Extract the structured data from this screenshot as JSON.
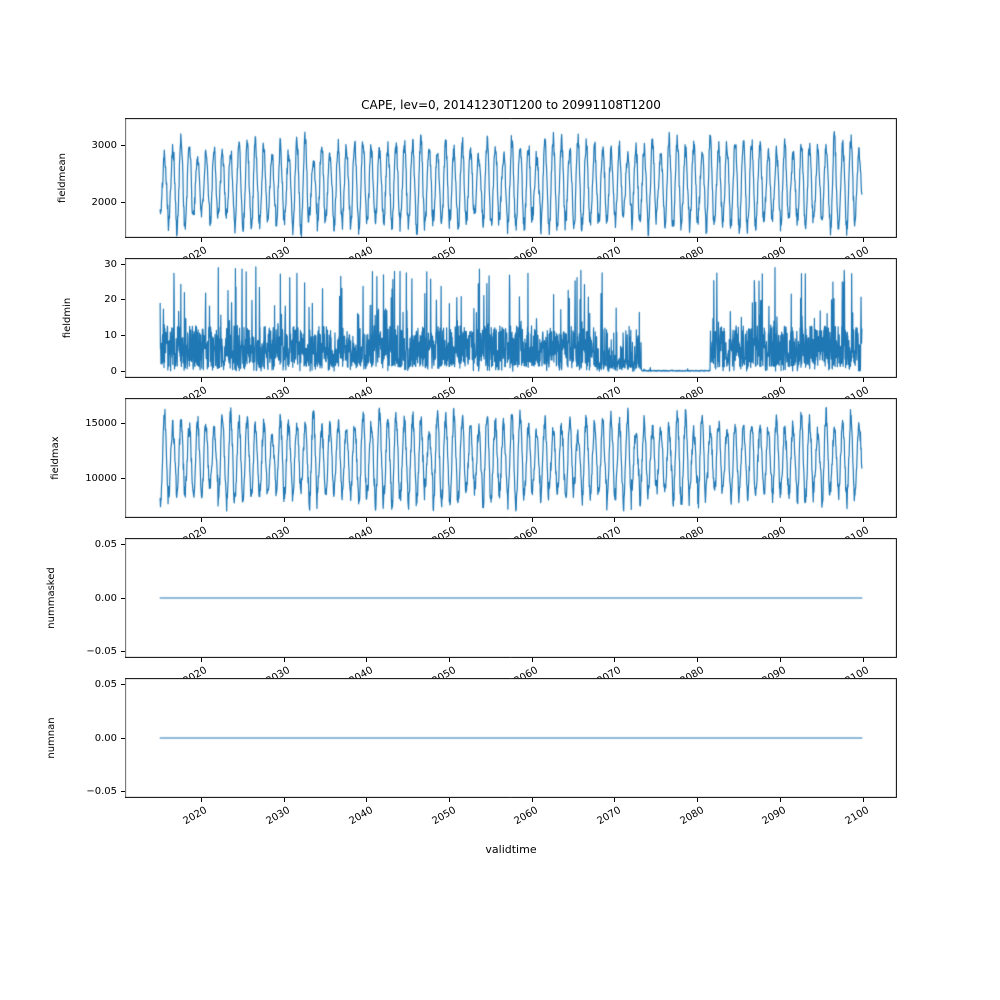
{
  "figure": {
    "title": "CAPE, lev=0, 20141230T1200 to 20991108T1200",
    "xlabel": "validtime",
    "line_color": "#1f77b4",
    "background": "#ffffff",
    "legend": "none",
    "grid": "off"
  },
  "x_axis": {
    "label": "validtime",
    "lim": [
      2010.75,
      2104.1
    ],
    "data_start": 2015.0,
    "data_end": 2099.85,
    "ticks": [
      {
        "v": 2020,
        "label": "2020"
      },
      {
        "v": 2030,
        "label": "2030"
      },
      {
        "v": 2040,
        "label": "2040"
      },
      {
        "v": 2050,
        "label": "2050"
      },
      {
        "v": 2060,
        "label": "2060"
      },
      {
        "v": 2070,
        "label": "2070"
      },
      {
        "v": 2080,
        "label": "2080"
      },
      {
        "v": 2090,
        "label": "2090"
      },
      {
        "v": 2100,
        "label": "2100"
      }
    ]
  },
  "chart_data": [
    {
      "type": "line",
      "ylabel": "fieldmean",
      "ylim": [
        1370,
        3475
      ],
      "yticks": [
        {
          "v": 2000,
          "label": "2000"
        },
        {
          "v": 3000,
          "label": "3000"
        }
      ],
      "series": [
        {
          "name": "fieldmean",
          "pattern": "seasonal",
          "period_years": 1,
          "baseline": 2300,
          "amplitude": 650,
          "noise": 140,
          "clamp": [
            1400,
            3430
          ],
          "points_per_year": 24,
          "approx_min": 1400,
          "approx_max": 3430
        }
      ]
    },
    {
      "type": "line",
      "ylabel": "fieldmin",
      "ylim": [
        -1.9,
        31.7
      ],
      "yticks": [
        {
          "v": 0,
          "label": "0"
        },
        {
          "v": 10,
          "label": "10"
        },
        {
          "v": 20,
          "label": "20"
        },
        {
          "v": 30,
          "label": "30"
        }
      ],
      "series": [
        {
          "name": "fieldmin",
          "pattern": "spiky",
          "baseline": 7,
          "spike_max": 29.5,
          "zero_interval": [
            2073.2,
            2081.5
          ],
          "clamp": [
            0,
            29.5
          ],
          "points_per_year": 30,
          "approx_min": 0,
          "approx_max": 29.5,
          "note": "values collapse to ~0 between ~2073 and ~2081"
        }
      ]
    },
    {
      "type": "line",
      "ylabel": "fieldmax",
      "ylim": [
        6450,
        17360
      ],
      "yticks": [
        {
          "v": 10000,
          "label": "10000"
        },
        {
          "v": 15000,
          "label": "15000"
        }
      ],
      "series": [
        {
          "name": "fieldmax",
          "pattern": "seasonal",
          "period_years": 1,
          "baseline": 11800,
          "amplitude": 3300,
          "noise": 750,
          "clamp": [
            7000,
            17340
          ],
          "points_per_year": 24,
          "approx_min": 7000,
          "approx_max": 17340
        }
      ]
    },
    {
      "type": "line",
      "ylabel": "nummasked",
      "ylim": [
        -0.0566,
        0.0566
      ],
      "yticks": [
        {
          "v": -0.05,
          "label": "−0.05"
        },
        {
          "v": 0,
          "label": "0.00"
        },
        {
          "v": 0.05,
          "label": "0.05"
        }
      ],
      "series": [
        {
          "name": "nummasked",
          "pattern": "constant",
          "value": 0
        }
      ]
    },
    {
      "type": "line",
      "ylabel": "numnan",
      "ylim": [
        -0.0566,
        0.0566
      ],
      "yticks": [
        {
          "v": -0.05,
          "label": "−0.05"
        },
        {
          "v": 0,
          "label": "0.00"
        },
        {
          "v": 0.05,
          "label": "0.05"
        }
      ],
      "series": [
        {
          "name": "numnan",
          "pattern": "constant",
          "value": 0
        }
      ]
    }
  ]
}
